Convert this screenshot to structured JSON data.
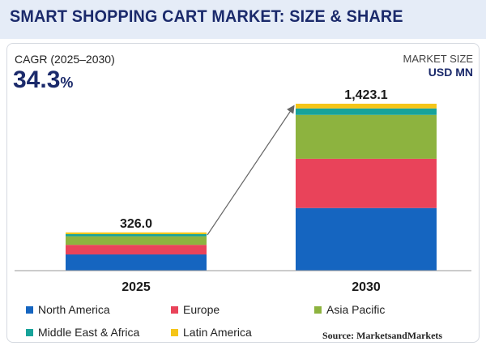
{
  "title": "SMART SHOPPING CART MARKET: SIZE & SHARE",
  "cagr": {
    "label": "CAGR (2025–2030)",
    "value": "34.3",
    "unit": "%"
  },
  "market_size": {
    "label": "MARKET SIZE",
    "unit": "USD MN"
  },
  "source": "Source: MarketsandMarkets",
  "colors": {
    "North America": "#1565c0",
    "Europe": "#e9435a",
    "Asia Pacific": "#8db33f",
    "Middle East & Africa": "#17a39a",
    "Latin America": "#f5c518"
  },
  "chart_data": {
    "type": "bar",
    "stacked": true,
    "categories": [
      "2025",
      "2030"
    ],
    "totals": [
      "326.0",
      "1,423.1"
    ],
    "total_values": [
      326.0,
      1423.1
    ],
    "series": [
      {
        "name": "North America",
        "values": [
          138,
          534
        ]
      },
      {
        "name": "Europe",
        "values": [
          82,
          420
        ]
      },
      {
        "name": "Asia Pacific",
        "values": [
          73,
          374
        ]
      },
      {
        "name": "Middle East & Africa",
        "values": [
          18,
          55
        ]
      },
      {
        "name": "Latin America",
        "values": [
          15,
          40
        ]
      }
    ],
    "ylim": [
      0,
      1423.1
    ],
    "legend_position": "bottom",
    "grid": false
  }
}
